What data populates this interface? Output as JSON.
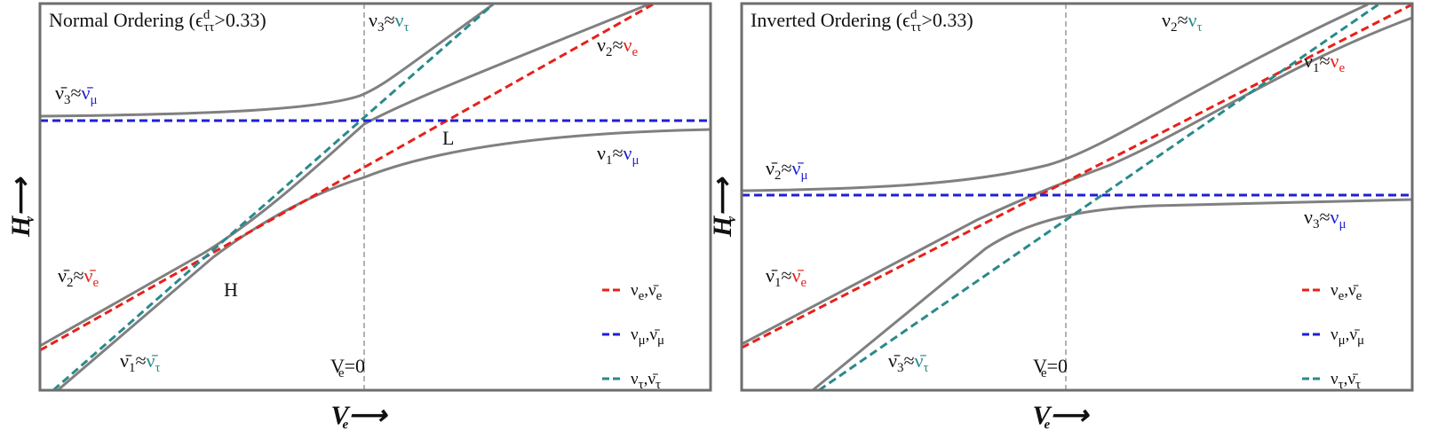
{
  "panels": [
    {
      "title": {
        "prefix": "Normal Ordering (",
        "sym": "ϵ",
        "sup": "d",
        "sub": "ττ",
        "suffix": ">0.33)"
      },
      "x_label": {
        "main": "V",
        "sub": "e",
        "arrow": "⟶"
      },
      "y_label": {
        "main": "H",
        "sub": "ν",
        "arrow": "⟶"
      },
      "marker": {
        "main": "V",
        "sub": "e",
        "rest": "=0"
      },
      "levels": [
        {
          "a": "ν̄",
          "a_sub": "3",
          "rel": "≈",
          "b": "ν̄",
          "b_sub": "μ",
          "color": "#1f1fd6"
        },
        {
          "a": "ν",
          "a_sub": "3",
          "rel": "≈",
          "b": "ν",
          "b_sub": "τ",
          "color": "#2a8a8a"
        },
        {
          "a": "ν",
          "a_sub": "2",
          "rel": "≈",
          "b": "ν",
          "b_sub": "e",
          "color": "#e8201a"
        },
        {
          "a": "ν",
          "a_sub": "1",
          "rel": "≈",
          "b": "ν",
          "b_sub": "μ",
          "color": "#1f1fd6"
        },
        {
          "a": "ν̄",
          "a_sub": "2",
          "rel": "≈",
          "b": "ν̄",
          "b_sub": "e",
          "color": "#e8201a"
        },
        {
          "a": "ν̄",
          "a_sub": "1",
          "rel": "≈",
          "b": "ν̄",
          "b_sub": "τ",
          "color": "#2a8a8a"
        }
      ],
      "points": [
        "L",
        "H"
      ],
      "legend": [
        {
          "a": "ν",
          "a_sub": "e",
          "sep": ",",
          "b": "ν̄",
          "b_sub": "e",
          "color": "#e8201a"
        },
        {
          "a": "ν",
          "a_sub": "μ",
          "sep": ",",
          "b": "ν̄",
          "b_sub": "μ",
          "color": "#1f1fd6"
        },
        {
          "a": "ν",
          "a_sub": "τ",
          "sep": ",",
          "b": "ν̄",
          "b_sub": "τ",
          "color": "#2a8a8a"
        }
      ]
    },
    {
      "title": {
        "prefix": "Inverted Ordering (",
        "sym": "ϵ",
        "sup": "d",
        "sub": "ττ",
        "suffix": ">0.33)"
      },
      "x_label": {
        "main": "V",
        "sub": "e",
        "arrow": "⟶"
      },
      "y_label": {
        "main": "H",
        "sub": "ν",
        "arrow": "⟶"
      },
      "marker": {
        "main": "V",
        "sub": "e",
        "rest": "=0"
      },
      "levels": [
        {
          "a": "ν̄",
          "a_sub": "2",
          "rel": "≈",
          "b": "ν̄",
          "b_sub": "μ",
          "color": "#1f1fd6"
        },
        {
          "a": "ν",
          "a_sub": "2",
          "rel": "≈",
          "b": "ν",
          "b_sub": "τ",
          "color": "#2a8a8a"
        },
        {
          "a": "ν",
          "a_sub": "1",
          "rel": "≈",
          "b": "ν",
          "b_sub": "e",
          "color": "#e8201a"
        },
        {
          "a": "ν",
          "a_sub": "3",
          "rel": "≈",
          "b": "ν",
          "b_sub": "μ",
          "color": "#1f1fd6"
        },
        {
          "a": "ν̄",
          "a_sub": "1",
          "rel": "≈",
          "b": "ν̄",
          "b_sub": "e",
          "color": "#e8201a"
        },
        {
          "a": "ν̄",
          "a_sub": "3",
          "rel": "≈",
          "b": "ν̄",
          "b_sub": "τ",
          "color": "#2a8a8a"
        }
      ],
      "legend": [
        {
          "a": "ν",
          "a_sub": "e",
          "sep": ",",
          "b": "ν̄",
          "b_sub": "e",
          "color": "#e8201a"
        },
        {
          "a": "ν",
          "a_sub": "μ",
          "sep": ",",
          "b": "ν̄",
          "b_sub": "μ",
          "color": "#1f1fd6"
        },
        {
          "a": "ν",
          "a_sub": "τ",
          "sep": ",",
          "b": "ν̄",
          "b_sub": "τ",
          "color": "#2a8a8a"
        }
      ]
    }
  ]
}
